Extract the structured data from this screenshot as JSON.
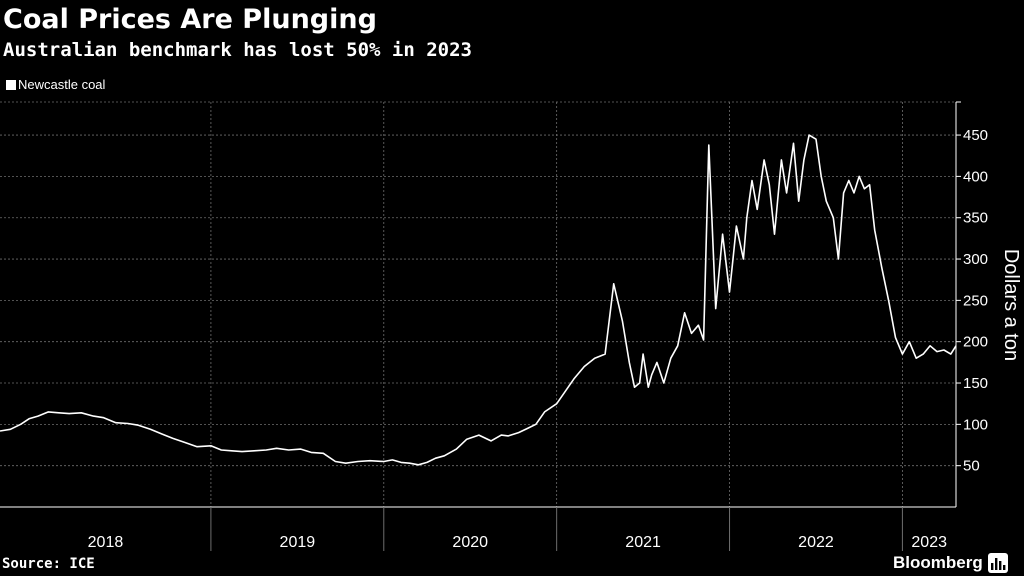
{
  "header": {
    "title": "Coal Prices Are Plunging",
    "subtitle": "Australian benchmark has lost 50% in 2023"
  },
  "legend": {
    "label": "Newcastle coal"
  },
  "footer": {
    "source": "Source: ICE",
    "brand": "Bloomberg",
    "brand_icon": "bloomberg-bars-icon"
  },
  "colors": {
    "background": "#000000",
    "line": "#ffffff",
    "grid": "#6e6e6e",
    "text": "#ffffff"
  },
  "chart_data": {
    "type": "line",
    "title": "Coal Prices Are Plunging",
    "subtitle": "Australian benchmark has lost 50% in 2023",
    "xlabel": "",
    "ylabel": "Dollars a ton",
    "ylim": [
      0,
      490
    ],
    "xlim": [
      2017.78,
      2023.31
    ],
    "grid": true,
    "legend_position": "top-left",
    "y_ticks": [
      50,
      100,
      150,
      200,
      250,
      300,
      350,
      400,
      450
    ],
    "x_categories": [
      "2018",
      "2019",
      "2020",
      "2021",
      "2022",
      "2023"
    ],
    "x_boundaries": [
      2017.78,
      2019.0,
      2020.0,
      2021.0,
      2022.0,
      2023.0,
      2023.31
    ],
    "series": [
      {
        "name": "Newcastle coal",
        "x": [
          2017.78,
          2017.84,
          2017.9,
          2017.95,
          2018.0,
          2018.06,
          2018.12,
          2018.18,
          2018.25,
          2018.32,
          2018.38,
          2018.45,
          2018.52,
          2018.58,
          2018.65,
          2018.72,
          2018.78,
          2018.85,
          2018.92,
          2019.0,
          2019.06,
          2019.12,
          2019.18,
          2019.25,
          2019.32,
          2019.38,
          2019.45,
          2019.52,
          2019.58,
          2019.65,
          2019.72,
          2019.78,
          2019.85,
          2019.92,
          2020.0,
          2020.05,
          2020.1,
          2020.15,
          2020.2,
          2020.25,
          2020.3,
          2020.35,
          2020.42,
          2020.48,
          2020.55,
          2020.62,
          2020.68,
          2020.72,
          2020.78,
          2020.83,
          2020.88,
          2020.93,
          2021.0,
          2021.05,
          2021.1,
          2021.16,
          2021.22,
          2021.28,
          2021.33,
          2021.38,
          2021.42,
          2021.45,
          2021.48,
          2021.5,
          2021.53,
          2021.55,
          2021.58,
          2021.62,
          2021.66,
          2021.7,
          2021.74,
          2021.78,
          2021.82,
          2021.85,
          2021.88,
          2021.92,
          2021.96,
          2022.0,
          2022.02,
          2022.04,
          2022.06,
          2022.08,
          2022.1,
          2022.13,
          2022.16,
          2022.2,
          2022.23,
          2022.26,
          2022.3,
          2022.33,
          2022.37,
          2022.4,
          2022.43,
          2022.46,
          2022.5,
          2022.53,
          2022.56,
          2022.6,
          2022.63,
          2022.66,
          2022.69,
          2022.72,
          2022.75,
          2022.78,
          2022.81,
          2022.84,
          2022.88,
          2022.92,
          2022.96,
          2023.0,
          2023.04,
          2023.08,
          2023.12,
          2023.16,
          2023.2,
          2023.24,
          2023.28,
          2023.31
        ],
        "values": [
          92,
          94,
          100,
          107,
          110,
          115,
          114,
          113,
          114,
          110,
          108,
          102,
          101,
          99,
          94,
          88,
          83,
          78,
          73,
          74,
          69,
          68,
          67,
          68,
          69,
          71,
          69,
          70,
          66,
          65,
          55,
          53,
          55,
          56,
          55,
          57,
          54,
          53,
          51,
          54,
          59,
          62,
          70,
          82,
          87,
          80,
          87,
          86,
          90,
          95,
          100,
          115,
          125,
          140,
          155,
          170,
          180,
          185,
          270,
          225,
          175,
          145,
          150,
          185,
          145,
          160,
          175,
          150,
          180,
          195,
          235,
          210,
          220,
          202,
          438,
          240,
          330,
          260,
          300,
          340,
          320,
          300,
          350,
          395,
          360,
          420,
          390,
          330,
          420,
          380,
          440,
          370,
          420,
          450,
          445,
          400,
          370,
          350,
          300,
          380,
          395,
          380,
          400,
          385,
          390,
          335,
          290,
          250,
          205,
          185,
          200,
          180,
          185,
          195,
          188,
          190,
          185,
          195
        ]
      }
    ]
  }
}
